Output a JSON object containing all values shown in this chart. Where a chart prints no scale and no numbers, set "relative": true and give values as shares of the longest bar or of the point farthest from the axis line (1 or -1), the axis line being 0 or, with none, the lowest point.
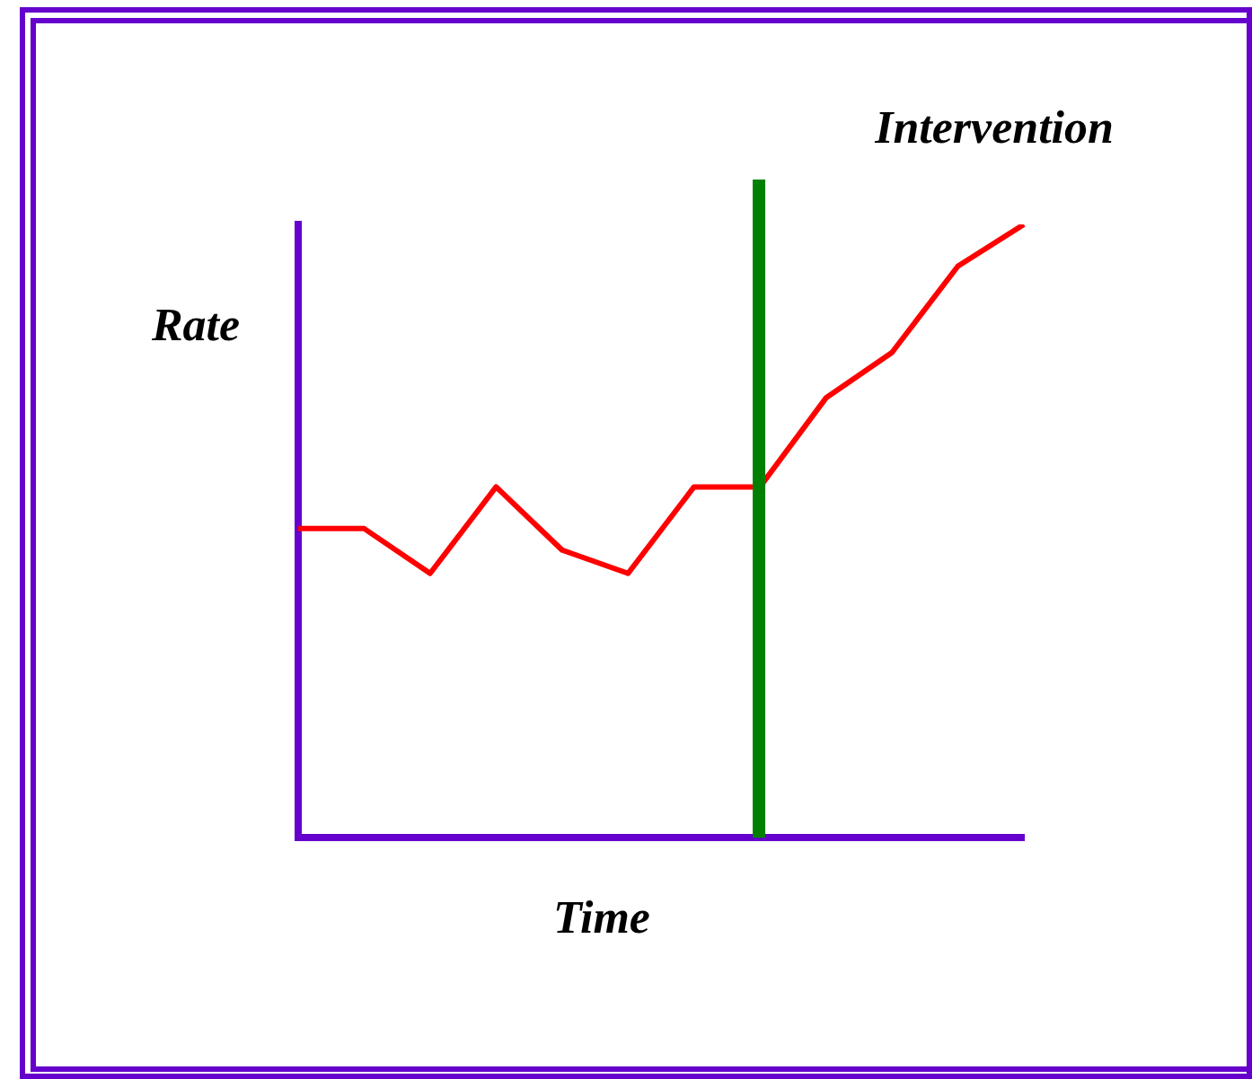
{
  "chart_data": {
    "type": "line",
    "relative": true,
    "xlabel": "Time",
    "ylabel": "Rate",
    "categories": [
      null,
      null,
      null,
      null,
      null,
      null,
      null,
      null,
      null,
      null,
      null,
      null
    ],
    "grid": false,
    "legend": false,
    "marker": "none",
    "line_style": "solid",
    "series": [
      {
        "color": "#ff0000",
        "values": [
          0.504,
          0.504,
          0.431,
          0.572,
          0.469,
          0.431,
          0.572,
          0.572,
          0.717,
          0.791,
          0.932,
          1
        ]
      }
    ],
    "annotations": [
      "Intervention"
    ]
  }
}
